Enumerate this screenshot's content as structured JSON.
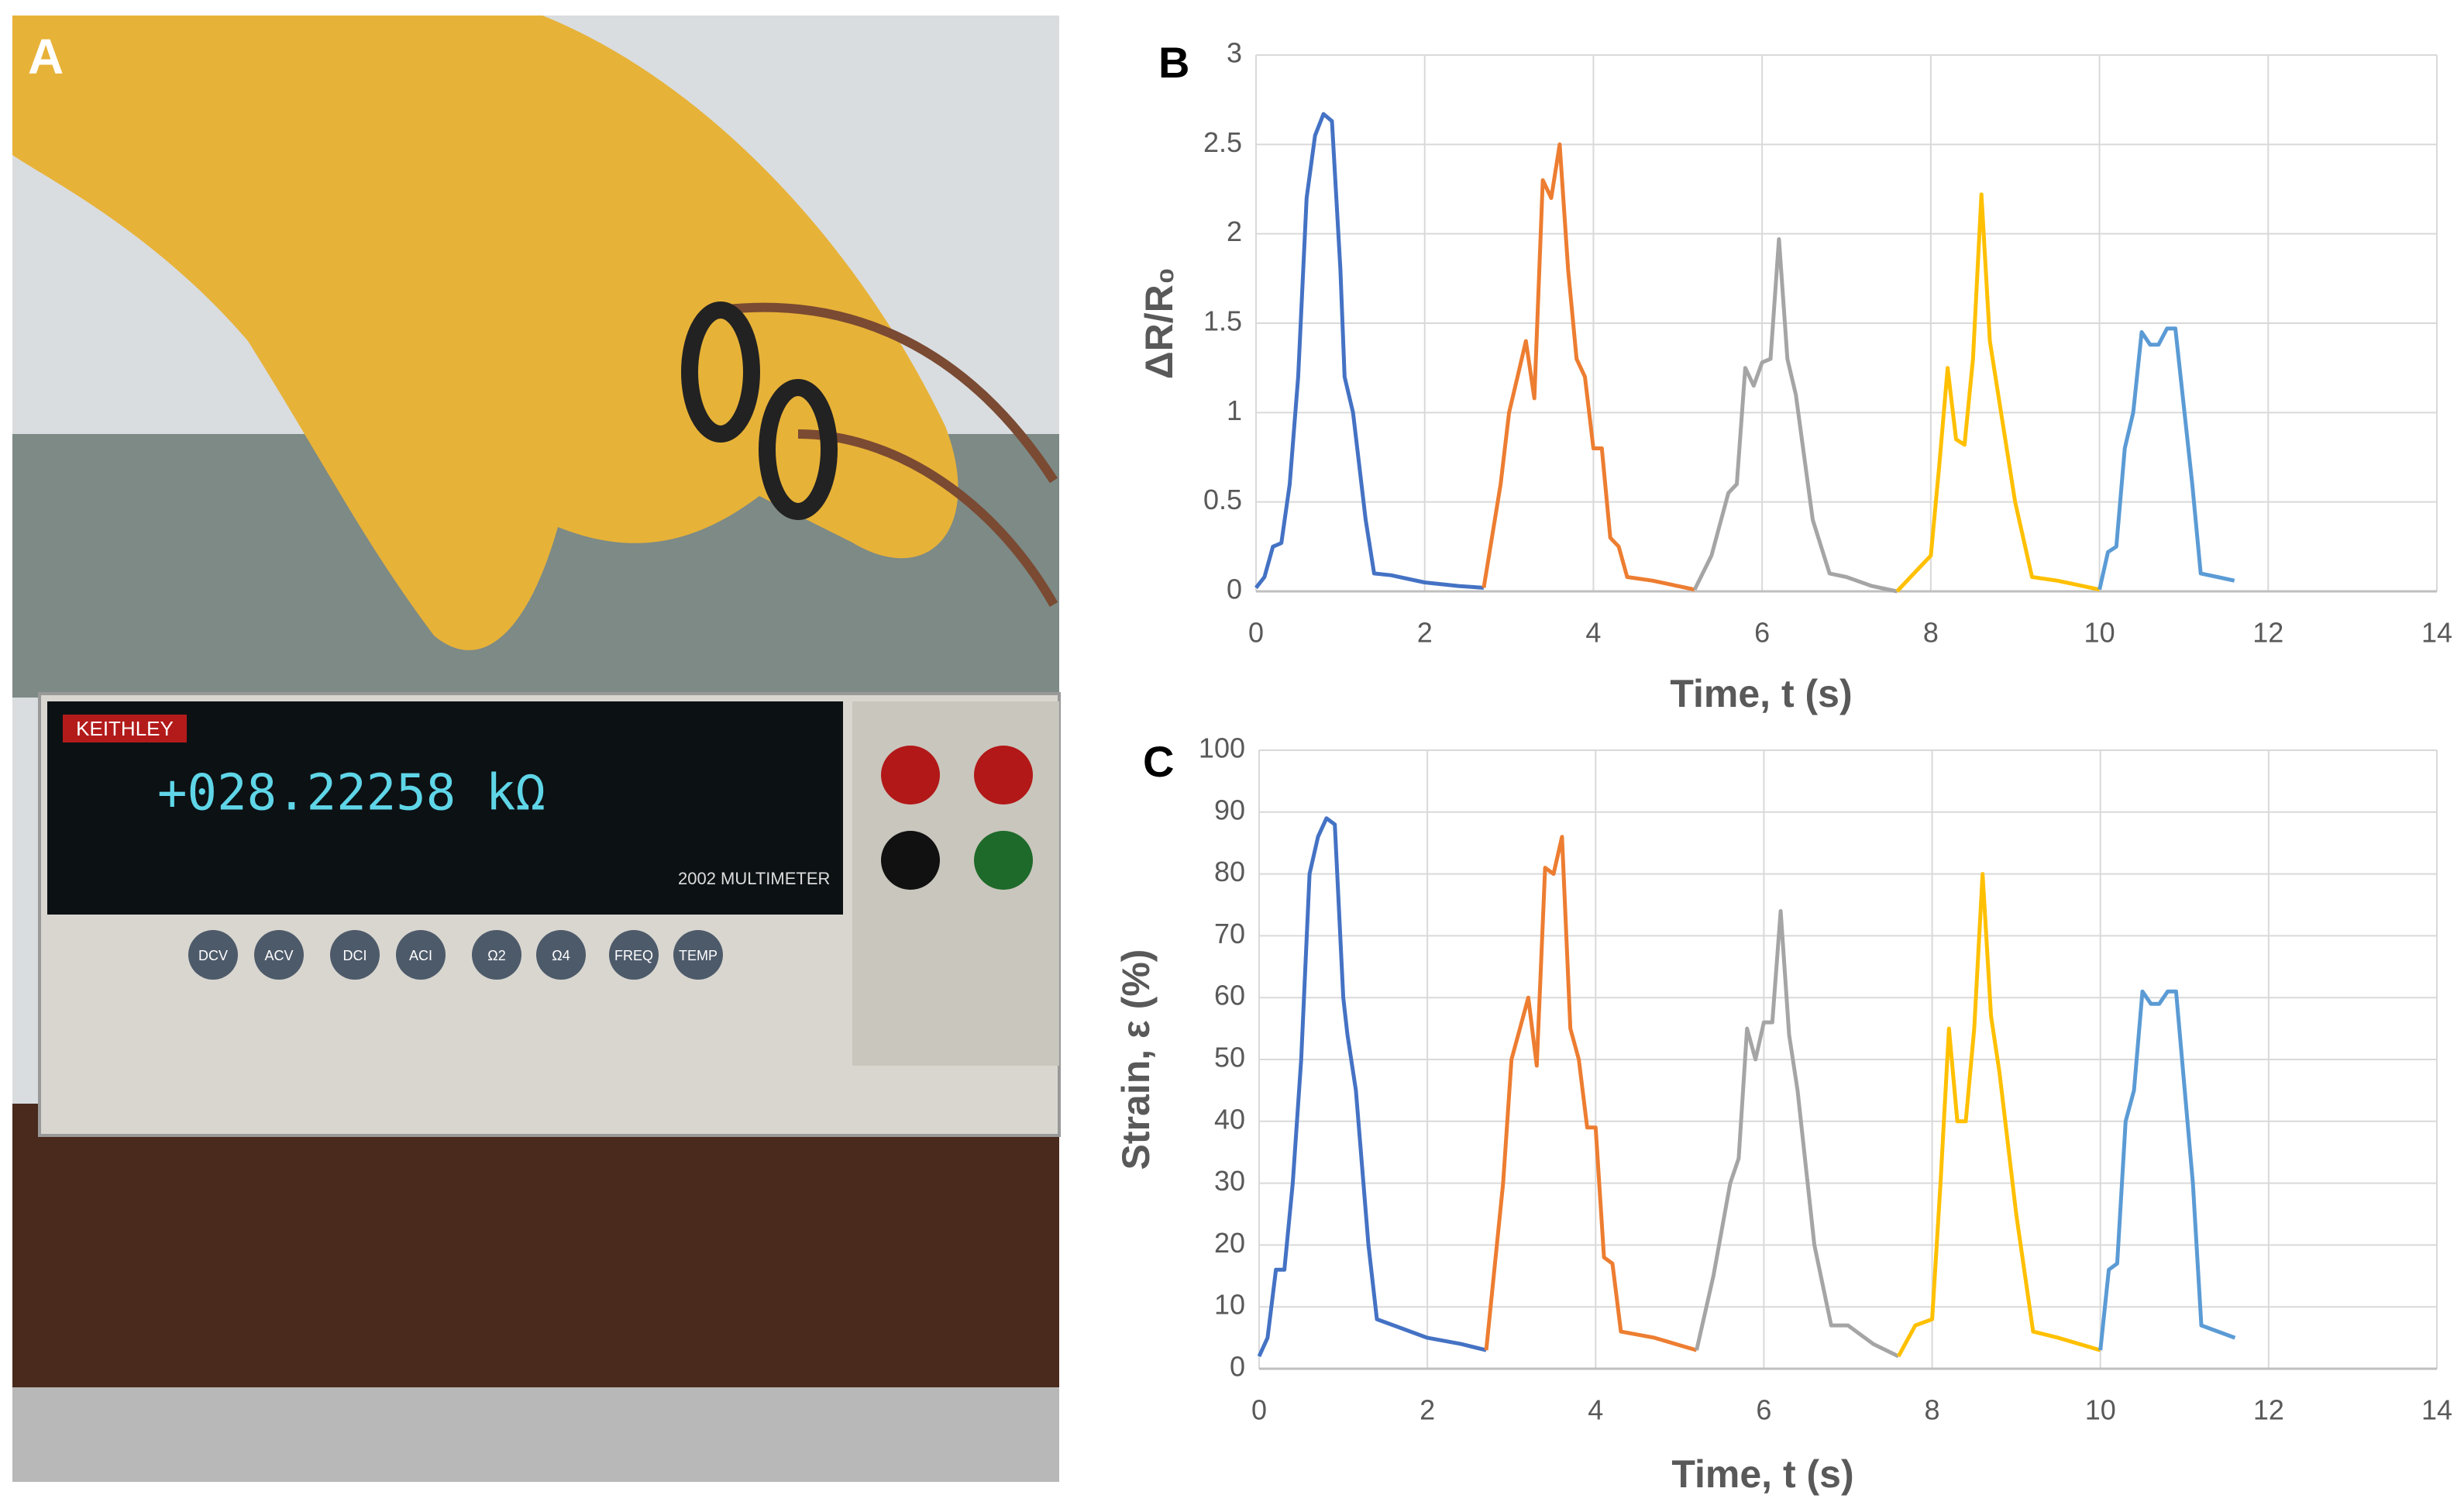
{
  "photo": {
    "panel_label": "A",
    "brand": "KEITHLEY",
    "reading": "+028.22258 kΩ",
    "model": "2002 MULTIMETER",
    "buttons": [
      "DCV",
      "ACV",
      "DCI",
      "ACI",
      "Ω2",
      "Ω4",
      "FREQ",
      "TEMP"
    ]
  },
  "chart_data": [
    {
      "type": "line",
      "panel_label": "B",
      "xlabel": "Time, t (s)",
      "ylabel": "ΔR/R₀",
      "xlim": [
        0,
        14
      ],
      "xticks": [
        0,
        2,
        4,
        6,
        8,
        10,
        12,
        14
      ],
      "ylim": [
        0,
        3
      ],
      "yticks": [
        0,
        0.5,
        1,
        1.5,
        2,
        2.5,
        3
      ],
      "grid": true,
      "series": [
        {
          "color": "#4472c4",
          "x": [
            0,
            0.1,
            0.2,
            0.3,
            0.4,
            0.5,
            0.6,
            0.7,
            0.8,
            0.9,
            1.0,
            1.05,
            1.15,
            1.3,
            1.4,
            1.6,
            2.0,
            2.4,
            2.7
          ],
          "values": [
            0.02,
            0.08,
            0.25,
            0.27,
            0.6,
            1.2,
            2.2,
            2.55,
            2.67,
            2.63,
            1.8,
            1.2,
            1.0,
            0.4,
            0.1,
            0.09,
            0.05,
            0.03,
            0.02
          ]
        },
        {
          "color": "#ed7d31",
          "x": [
            2.7,
            2.9,
            3.0,
            3.1,
            3.2,
            3.3,
            3.4,
            3.5,
            3.6,
            3.7,
            3.8,
            3.9,
            4.0,
            4.1,
            4.2,
            4.3,
            4.4,
            4.7,
            5.2
          ],
          "values": [
            0.02,
            0.6,
            1.0,
            1.2,
            1.4,
            1.08,
            2.3,
            2.2,
            2.5,
            1.8,
            1.3,
            1.2,
            0.8,
            0.8,
            0.3,
            0.25,
            0.08,
            0.06,
            0.01
          ]
        },
        {
          "color": "#a5a5a5",
          "x": [
            5.2,
            5.4,
            5.6,
            5.7,
            5.8,
            5.9,
            6.0,
            6.1,
            6.2,
            6.3,
            6.4,
            6.6,
            6.8,
            7.0,
            7.3,
            7.6
          ],
          "values": [
            0.01,
            0.2,
            0.55,
            0.6,
            1.25,
            1.15,
            1.28,
            1.3,
            1.97,
            1.3,
            1.1,
            0.4,
            0.1,
            0.08,
            0.03,
            0.0
          ]
        },
        {
          "color": "#ffc000",
          "x": [
            7.6,
            7.8,
            8.0,
            8.1,
            8.2,
            8.3,
            8.4,
            8.5,
            8.6,
            8.7,
            8.8,
            9.0,
            9.2,
            9.5,
            10.0
          ],
          "values": [
            0.0,
            0.1,
            0.2,
            0.7,
            1.25,
            0.85,
            0.82,
            1.3,
            2.22,
            1.4,
            1.1,
            0.5,
            0.08,
            0.06,
            0.01
          ]
        },
        {
          "color": "#5b9bd5",
          "x": [
            10.0,
            10.1,
            10.2,
            10.3,
            10.4,
            10.5,
            10.6,
            10.7,
            10.8,
            10.9,
            11.1,
            11.2,
            11.4,
            11.6
          ],
          "values": [
            0.01,
            0.22,
            0.25,
            0.8,
            1.0,
            1.45,
            1.38,
            1.38,
            1.47,
            1.47,
            0.6,
            0.1,
            0.08,
            0.06
          ]
        }
      ]
    },
    {
      "type": "line",
      "panel_label": "C",
      "xlabel": "Time, t (s)",
      "ylabel": "Strain, ε (%)",
      "xlim": [
        0,
        14
      ],
      "xticks": [
        0,
        2,
        4,
        6,
        8,
        10,
        12,
        14
      ],
      "ylim": [
        0,
        100
      ],
      "yticks": [
        0,
        10,
        20,
        30,
        40,
        50,
        60,
        70,
        80,
        90,
        100
      ],
      "grid": true,
      "series": [
        {
          "color": "#4472c4",
          "x": [
            0,
            0.1,
            0.2,
            0.3,
            0.4,
            0.5,
            0.6,
            0.7,
            0.8,
            0.9,
            1.0,
            1.05,
            1.15,
            1.3,
            1.4,
            1.6,
            2.0,
            2.4,
            2.7
          ],
          "values": [
            2,
            5,
            16,
            16,
            30,
            50,
            80,
            86,
            89,
            88,
            60,
            54,
            45,
            20,
            8,
            7,
            5,
            4,
            3
          ]
        },
        {
          "color": "#ed7d31",
          "x": [
            2.7,
            2.9,
            3.0,
            3.1,
            3.2,
            3.3,
            3.4,
            3.5,
            3.6,
            3.7,
            3.8,
            3.9,
            4.0,
            4.1,
            4.2,
            4.3,
            4.7,
            5.2
          ],
          "values": [
            3,
            30,
            50,
            55,
            60,
            49,
            81,
            80,
            86,
            55,
            50,
            39,
            39,
            18,
            17,
            6,
            5,
            3
          ]
        },
        {
          "color": "#a5a5a5",
          "x": [
            5.2,
            5.4,
            5.6,
            5.7,
            5.8,
            5.9,
            6.0,
            6.1,
            6.2,
            6.3,
            6.4,
            6.6,
            6.8,
            7.0,
            7.3,
            7.6
          ],
          "values": [
            3,
            15,
            30,
            34,
            55,
            50,
            56,
            56,
            74,
            54,
            45,
            20,
            7,
            7,
            4,
            2
          ]
        },
        {
          "color": "#ffc000",
          "x": [
            7.6,
            7.8,
            8.0,
            8.1,
            8.2,
            8.3,
            8.4,
            8.5,
            8.6,
            8.7,
            8.8,
            9.0,
            9.2,
            9.5,
            10.0
          ],
          "values": [
            2,
            7,
            8,
            30,
            55,
            40,
            40,
            55,
            80,
            57,
            48,
            25,
            6,
            5,
            3
          ]
        },
        {
          "color": "#5b9bd5",
          "x": [
            10.0,
            10.1,
            10.2,
            10.3,
            10.4,
            10.5,
            10.6,
            10.7,
            10.8,
            10.9,
            11.1,
            11.2,
            11.4,
            11.6
          ],
          "values": [
            3,
            16,
            17,
            40,
            45,
            61,
            59,
            59,
            61,
            61,
            30,
            7,
            6,
            5
          ]
        }
      ]
    }
  ]
}
